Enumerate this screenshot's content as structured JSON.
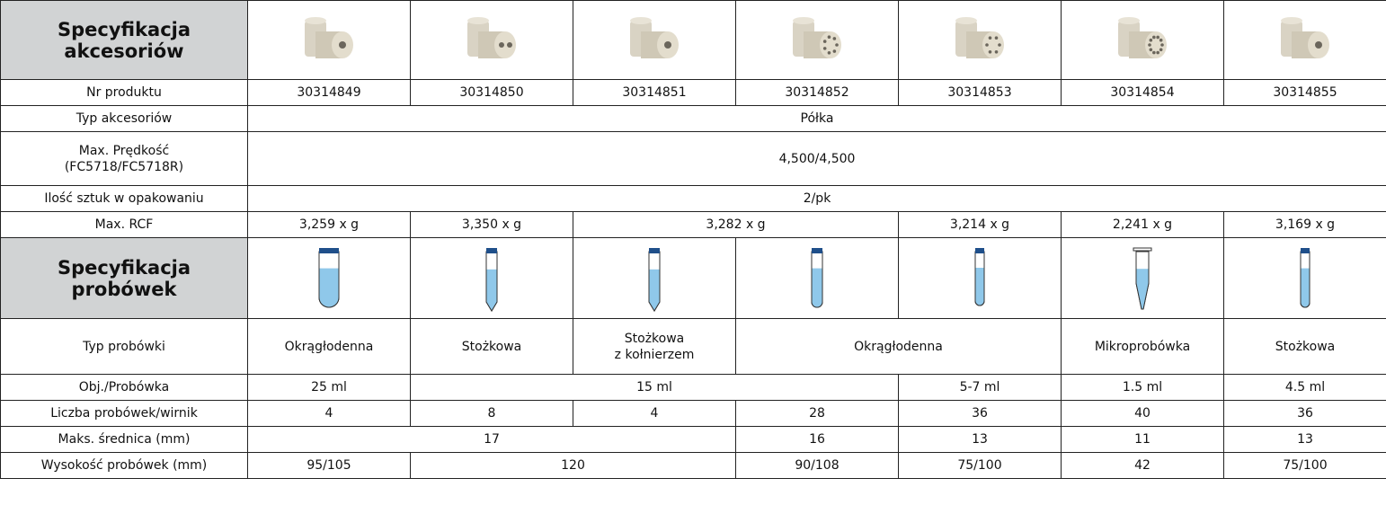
{
  "table": {
    "rows": [
      [
        "Specyfikacja\nakcesoriów"
      ],
      [
        "Nr produktu",
        "30314849",
        "30314850",
        "30314851",
        "30314852",
        "30314853",
        "30314854",
        "30314855"
      ],
      [
        "Typ akcesoriów",
        "Półka"
      ],
      [
        "Max. Prędkość\n(FC5718/FC5718R)",
        "4,500/4,500"
      ],
      [
        "Ilość sztuk w opakowaniu",
        "2/pk"
      ],
      [
        "Max. RCF",
        "3,259 x g",
        "3,350 x g",
        "3,282 x g",
        "3,214 x g",
        "2,241 x g",
        "3,169 x g"
      ],
      [
        "Specyfikacja\nprobówek"
      ],
      [
        "Typ probówki",
        "Okrągłodenna",
        "Stożkowa",
        "Stożkowa\nz kołnierzem",
        "Okrągłodenna",
        "Mikroprobówka",
        "Stożkowa"
      ],
      [
        "Obj./Probówka",
        "25 ml",
        "15 ml",
        "5-7 ml",
        "1.5 ml",
        "4.5 ml"
      ],
      [
        "Liczba probówek/wirnik",
        "4",
        "8",
        "4",
        "28",
        "36",
        "40",
        "36"
      ],
      [
        "Maks. średnica (mm)",
        "17",
        "16",
        "13",
        "11",
        "13"
      ],
      [
        "Wysokość probówek (mm)",
        "95/105",
        "120",
        "90/108",
        "75/100",
        "42",
        "75/100"
      ]
    ]
  }
}
